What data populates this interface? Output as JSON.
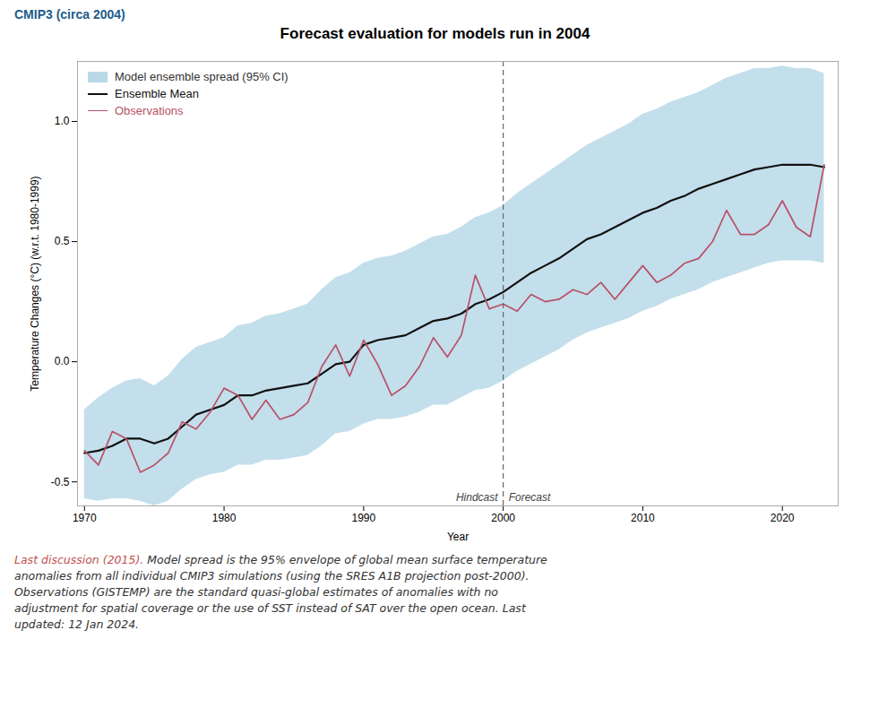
{
  "chart_data": {
    "type": "line",
    "title": "Forecast evaluation for models run in 2004",
    "subtitle": {
      "text": "CMIP3 (circa 2004)",
      "color": "#1f5c8b"
    },
    "xlabel": "Year",
    "ylabel": "Temperature Changes (°C) (w.r.t. 1980-1999)",
    "xlim": [
      1969.5,
      2024
    ],
    "ylim": [
      -0.6,
      1.25
    ],
    "xticks": [
      1970,
      1980,
      1990,
      2000,
      2010,
      2020
    ],
    "yticks": [
      -0.5,
      {
        "value": 0,
        "label": "0.0"
      },
      0.5,
      {
        "value": 1,
        "label": "1.0"
      }
    ],
    "grid": false,
    "legend": "upper left",
    "x": [
      1970,
      1971,
      1972,
      1973,
      1974,
      1975,
      1976,
      1977,
      1978,
      1979,
      1980,
      1981,
      1982,
      1983,
      1984,
      1985,
      1986,
      1987,
      1988,
      1989,
      1990,
      1991,
      1992,
      1993,
      1994,
      1995,
      1996,
      1997,
      1998,
      1999,
      2000,
      2001,
      2002,
      2003,
      2004,
      2005,
      2006,
      2007,
      2008,
      2009,
      2010,
      2011,
      2012,
      2013,
      2014,
      2015,
      2016,
      2017,
      2018,
      2019,
      2020,
      2021,
      2022,
      2023
    ],
    "series": [
      {
        "name": "Model ensemble spread (95% CI)",
        "type": "area",
        "color": "#b8d9e8",
        "lower": [
          -0.57,
          -0.58,
          -0.57,
          -0.57,
          -0.58,
          -0.6,
          -0.58,
          -0.53,
          -0.49,
          -0.47,
          -0.46,
          -0.43,
          -0.43,
          -0.41,
          -0.41,
          -0.4,
          -0.39,
          -0.35,
          -0.3,
          -0.29,
          -0.26,
          -0.24,
          -0.24,
          -0.23,
          -0.21,
          -0.18,
          -0.18,
          -0.15,
          -0.12,
          -0.11,
          -0.08,
          -0.04,
          -0.01,
          0.02,
          0.05,
          0.09,
          0.12,
          0.14,
          0.16,
          0.18,
          0.21,
          0.23,
          0.26,
          0.28,
          0.3,
          0.33,
          0.35,
          0.37,
          0.39,
          0.41,
          0.42,
          0.42,
          0.42,
          0.41
        ],
        "upper": [
          -0.2,
          -0.15,
          -0.11,
          -0.08,
          -0.07,
          -0.1,
          -0.06,
          0.01,
          0.06,
          0.08,
          0.1,
          0.15,
          0.16,
          0.19,
          0.2,
          0.22,
          0.24,
          0.3,
          0.35,
          0.37,
          0.41,
          0.43,
          0.44,
          0.46,
          0.49,
          0.52,
          0.53,
          0.56,
          0.6,
          0.62,
          0.65,
          0.7,
          0.74,
          0.78,
          0.82,
          0.86,
          0.9,
          0.93,
          0.96,
          0.99,
          1.03,
          1.05,
          1.08,
          1.1,
          1.12,
          1.15,
          1.18,
          1.2,
          1.22,
          1.22,
          1.23,
          1.22,
          1.22,
          1.2
        ]
      },
      {
        "name": "Ensemble Mean",
        "type": "line",
        "color": "#111111",
        "values": [
          -0.38,
          -0.37,
          -0.35,
          -0.32,
          -0.32,
          -0.34,
          -0.32,
          -0.27,
          -0.22,
          -0.2,
          -0.18,
          -0.14,
          -0.14,
          -0.12,
          -0.11,
          -0.1,
          -0.09,
          -0.05,
          -0.01,
          0.0,
          0.07,
          0.09,
          0.1,
          0.11,
          0.14,
          0.17,
          0.18,
          0.2,
          0.24,
          0.26,
          0.29,
          0.33,
          0.37,
          0.4,
          0.43,
          0.47,
          0.51,
          0.53,
          0.56,
          0.59,
          0.62,
          0.64,
          0.67,
          0.69,
          0.72,
          0.74,
          0.76,
          0.78,
          0.8,
          0.81,
          0.82,
          0.82,
          0.82,
          0.81
        ]
      },
      {
        "name": "Observations",
        "type": "line",
        "color": "#b85068",
        "values": [
          -0.37,
          -0.43,
          -0.29,
          -0.32,
          -0.46,
          -0.43,
          -0.38,
          -0.25,
          -0.28,
          -0.21,
          -0.11,
          -0.14,
          -0.24,
          -0.16,
          -0.24,
          -0.22,
          -0.17,
          -0.02,
          0.07,
          -0.06,
          0.09,
          -0.01,
          -0.14,
          -0.1,
          -0.02,
          0.1,
          0.02,
          0.11,
          0.36,
          0.22,
          0.24,
          0.21,
          0.28,
          0.25,
          0.26,
          0.3,
          0.28,
          0.33,
          0.26,
          0.33,
          0.4,
          0.33,
          0.36,
          0.41,
          0.43,
          0.5,
          0.63,
          0.53,
          0.53,
          0.57,
          0.67,
          0.56,
          0.52,
          0.82
        ]
      }
    ],
    "vline": {
      "x": 2000,
      "line_style": "dashed",
      "color": "#666666",
      "labels": [
        "Hindcast",
        "Forecast"
      ]
    },
    "caption": [
      [
        {
          "text": "Last discussion (2015).",
          "color": "#c0504d"
        },
        {
          "text": " Model spread is the 95% envelope of global mean surface temperature",
          "color": "#333333"
        }
      ],
      [
        {
          "text": "anomalies from all individual CMIP3 simulations (using the SRES A1B projection post-2000).",
          "color": "#333333"
        }
      ],
      [
        {
          "text": "Observations (GISTEMP) are the standard quasi-global estimates of anomalies with no",
          "color": "#333333"
        }
      ],
      [
        {
          "text": "adjustment for spatial coverage or the use of SST instead of SAT over the open ocean. Last",
          "color": "#333333"
        }
      ],
      [
        {
          "text": "updated: 12 Jan 2024.",
          "color": "#333333"
        }
      ]
    ]
  }
}
